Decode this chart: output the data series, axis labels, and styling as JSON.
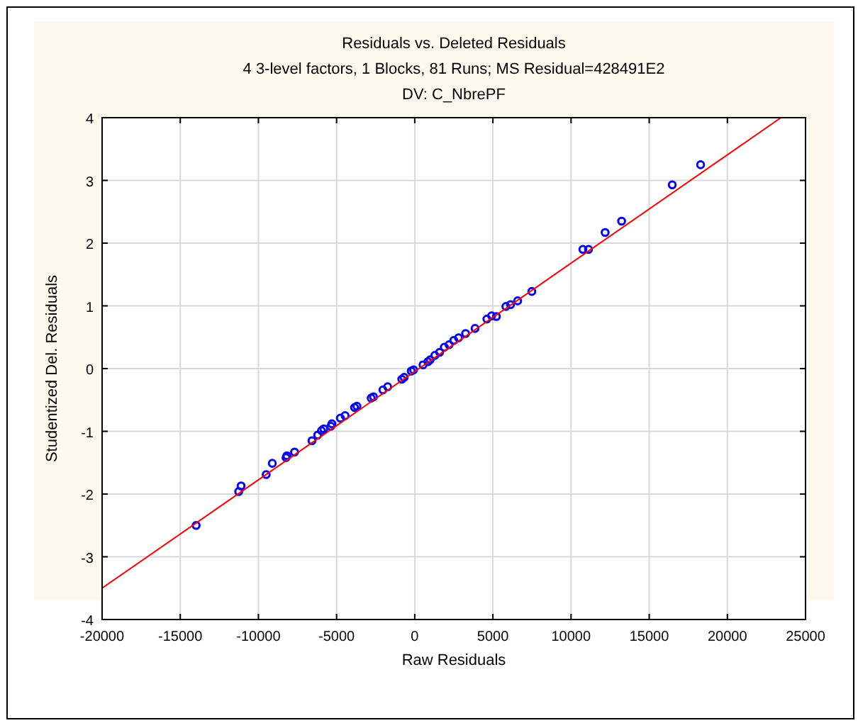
{
  "chart_data": {
    "type": "scatter",
    "title": "Residuals vs. Deleted Residuals",
    "subtitle": "4 3-level factors, 1 Blocks, 81 Runs; MS Residual=428491E2\nDV: C_NbrePF",
    "xlabel": "Raw Residuals",
    "ylabel": "Studentized Del. Residuals",
    "xlim": [
      -20000,
      25000
    ],
    "ylim": [
      -4,
      4
    ],
    "xticks": [
      -20000,
      -15000,
      -10000,
      -5000,
      0,
      5000,
      10000,
      15000,
      20000,
      25000
    ],
    "yticks": [
      -4,
      -3,
      -2,
      -1,
      0,
      1,
      2,
      3,
      4
    ],
    "grid": true,
    "marker": "circle",
    "series": [
      {
        "color": "#0000ff",
        "x": [
          -13985,
          -11263,
          -11110,
          -9503,
          -9113,
          -8234,
          -8180,
          -7689,
          -6573,
          -6210,
          -5968,
          -5818,
          -5366,
          -5302,
          -4758,
          -4455,
          -3851,
          -3700,
          -2790,
          -2640,
          -2036,
          -1733,
          -830,
          -680,
          -223,
          -72,
          530,
          985,
          1288,
          1590,
          1893,
          2195,
          2498,
          2800,
          3254,
          3859,
          4615,
          4917,
          840,
          5222,
          5830,
          6129,
          6583,
          7490,
          10756,
          11119,
          12180,
          13233,
          16472,
          18286
        ],
        "values": [
          -2.5,
          -1.96,
          -1.87,
          -1.69,
          -1.51,
          -1.42,
          -1.39,
          -1.33,
          -1.15,
          -1.06,
          -0.99,
          -0.96,
          -0.92,
          -0.88,
          -0.79,
          -0.75,
          -0.62,
          -0.6,
          -0.47,
          -0.45,
          -0.34,
          -0.29,
          -0.17,
          -0.14,
          -0.04,
          -0.02,
          0.06,
          0.14,
          0.21,
          0.26,
          0.34,
          0.38,
          0.45,
          0.49,
          0.56,
          0.64,
          0.79,
          0.84,
          0.11,
          0.83,
          0.99,
          1.02,
          1.08,
          1.23,
          1.9,
          1.9,
          2.17,
          2.35,
          2.93,
          3.25
        ]
      },
      {
        "type": "line",
        "color": "#ff0000",
        "marker": "none",
        "x": [
          -20000,
          23430
        ],
        "values": [
          -3.5,
          4
        ]
      }
    ]
  }
}
